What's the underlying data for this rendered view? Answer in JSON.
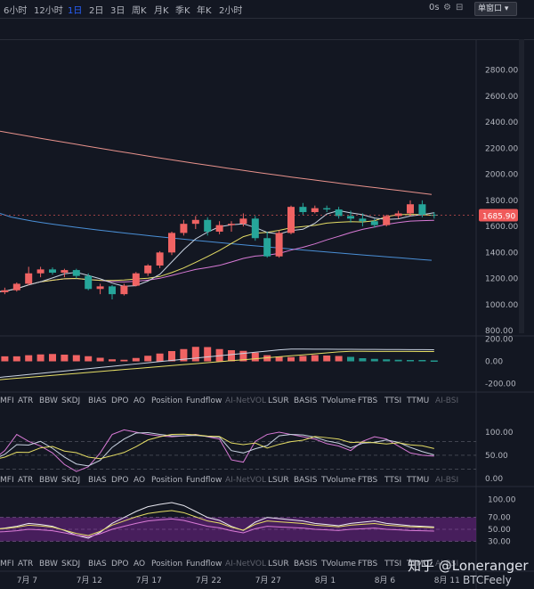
{
  "toolbar": {
    "timeframes": [
      "6小时",
      "12小时",
      "1日",
      "2日",
      "3日",
      "周K",
      "月K",
      "季K",
      "年K",
      "2小时"
    ],
    "active_timeframe": "1日",
    "mode": "0s",
    "window_select": "单窗口"
  },
  "colors": {
    "background": "#131722",
    "up_candle": "#f06363",
    "down_candle": "#26a69a",
    "ma_long": "#e8928c",
    "ma_blue": "#4a8fd6",
    "ma_mid": "#d87ad6",
    "ma_yellow": "#e5dd65",
    "ma_white": "#c9d3e2",
    "last_price_badge": "#f05a5a",
    "osc_band": "#5a2270"
  },
  "main_axis_ticks": [
    "2800.00",
    "2600.00",
    "2400.00",
    "2200.00",
    "2000.00",
    "1800.00",
    "1600.00",
    "1400.00",
    "1200.00",
    "1000.00",
    "800.00"
  ],
  "macd_axis_ticks": [
    "200.00",
    "0.00",
    "-200.00"
  ],
  "kdj_axis_ticks": [
    "100.00",
    "50.00",
    "0.00"
  ],
  "rsi_axis_ticks": [
    "100.00",
    "70.00",
    "50.00",
    "30.00"
  ],
  "last_price": "1685.90",
  "indicator_tabs": {
    "names": [
      "MFI",
      "ATR",
      "BBW",
      "SKDJ",
      "BIAS",
      "DPO",
      "AO",
      "Position",
      "Fundflow",
      "AI-NetVOL",
      "LSUR",
      "BASIS",
      "TVolume",
      "FTBS",
      "TTSI",
      "TTMU",
      "AI-BSI"
    ],
    "dim": [
      "AI-NetVOL",
      "AI-BSI"
    ]
  },
  "x_axis_labels": [
    "7月 7",
    "7月 12",
    "7月 17",
    "7月 22",
    "7月 27",
    "8月 1",
    "8月 6",
    "8月 11"
  ],
  "watermark": {
    "line1": "知乎 @Loneranger",
    "line2": "BTCFeely"
  },
  "chart_data": {
    "type": "candlestick",
    "title": "",
    "x": [
      "7/5",
      "7/6",
      "7/7",
      "7/8",
      "7/9",
      "7/10",
      "7/11",
      "7/12",
      "7/13",
      "7/14",
      "7/15",
      "7/16",
      "7/17",
      "7/18",
      "7/19",
      "7/20",
      "7/21",
      "7/22",
      "7/23",
      "7/24",
      "7/25",
      "7/26",
      "7/27",
      "7/28",
      "7/29",
      "7/30",
      "7/31",
      "8/1",
      "8/2",
      "8/3",
      "8/4",
      "8/5",
      "8/6",
      "8/7",
      "8/8",
      "8/9",
      "8/10",
      "8/11"
    ],
    "ohlc": [
      [
        1085,
        1120,
        1070,
        1095
      ],
      [
        1095,
        1130,
        1080,
        1110
      ],
      [
        1110,
        1170,
        1100,
        1160
      ],
      [
        1160,
        1290,
        1150,
        1240
      ],
      [
        1240,
        1290,
        1210,
        1270
      ],
      [
        1270,
        1285,
        1230,
        1245
      ],
      [
        1245,
        1275,
        1210,
        1265
      ],
      [
        1265,
        1275,
        1200,
        1220
      ],
      [
        1220,
        1240,
        1110,
        1120
      ],
      [
        1120,
        1160,
        1080,
        1140
      ],
      [
        1140,
        1150,
        1040,
        1080
      ],
      [
        1080,
        1160,
        1070,
        1145
      ],
      [
        1145,
        1250,
        1140,
        1240
      ],
      [
        1240,
        1310,
        1220,
        1300
      ],
      [
        1300,
        1410,
        1280,
        1400
      ],
      [
        1400,
        1560,
        1380,
        1550
      ],
      [
        1550,
        1650,
        1530,
        1620
      ],
      [
        1620,
        1680,
        1580,
        1650
      ],
      [
        1650,
        1670,
        1530,
        1560
      ],
      [
        1560,
        1640,
        1540,
        1610
      ],
      [
        1610,
        1640,
        1560,
        1620
      ],
      [
        1620,
        1700,
        1600,
        1660
      ],
      [
        1660,
        1680,
        1490,
        1510
      ],
      [
        1510,
        1560,
        1360,
        1370
      ],
      [
        1370,
        1570,
        1360,
        1550
      ],
      [
        1550,
        1760,
        1540,
        1750
      ],
      [
        1750,
        1780,
        1690,
        1710
      ],
      [
        1710,
        1760,
        1700,
        1740
      ],
      [
        1740,
        1760,
        1710,
        1730
      ],
      [
        1730,
        1750,
        1660,
        1680
      ],
      [
        1680,
        1720,
        1630,
        1660
      ],
      [
        1660,
        1700,
        1600,
        1640
      ],
      [
        1640,
        1660,
        1590,
        1610
      ],
      [
        1610,
        1690,
        1600,
        1680
      ],
      [
        1680,
        1720,
        1660,
        1700
      ],
      [
        1700,
        1800,
        1680,
        1770
      ],
      [
        1770,
        1800,
        1670,
        1690
      ],
      [
        1690,
        1710,
        1660,
        1686
      ]
    ],
    "ylim": [
      780,
      2900
    ],
    "ma_lines": {
      "ma_long_endpoints": [
        2330,
        1850
      ],
      "ma_blue_endpoints": [
        1700,
        1340
      ]
    },
    "macd_hist": [
      40,
      45,
      45,
      55,
      62,
      66,
      60,
      56,
      46,
      32,
      18,
      14,
      30,
      50,
      70,
      92,
      110,
      130,
      128,
      110,
      100,
      94,
      78,
      55,
      44,
      38,
      48,
      56,
      52,
      48,
      40,
      28,
      22,
      18,
      14,
      12,
      12,
      8
    ],
    "macd_ylim": [
      -260,
      220
    ],
    "kdj_ylim": [
      -10,
      125
    ],
    "rsi_ylim": [
      20,
      110
    ]
  }
}
